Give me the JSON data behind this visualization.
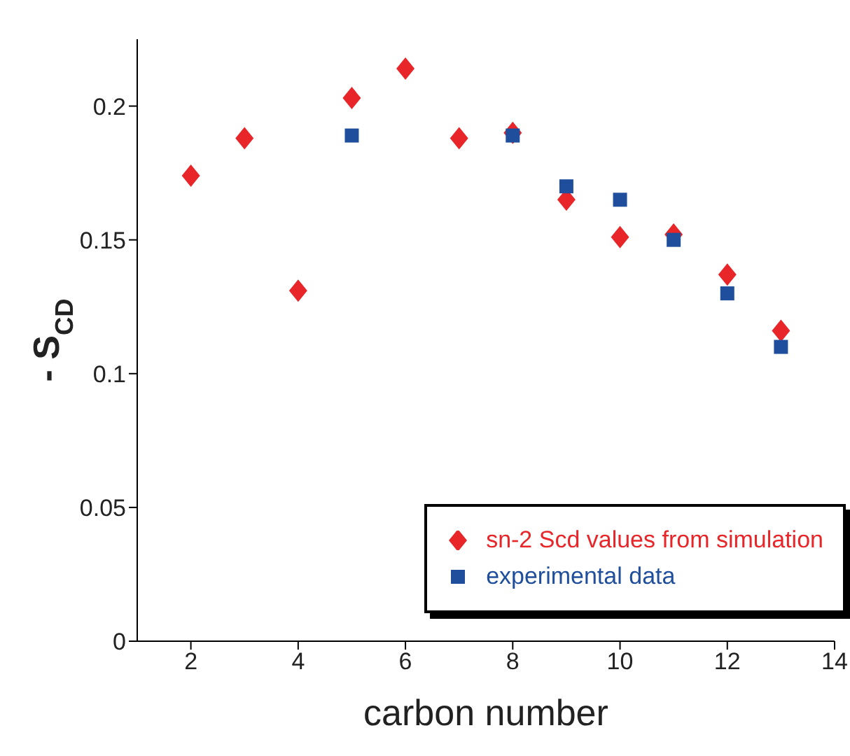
{
  "chart_data": {
    "type": "scatter",
    "xlabel": "carbon number",
    "ylabel": "- S$_{CD}$",
    "xlim": [
      1,
      14
    ],
    "xticks": [
      2,
      4,
      6,
      8,
      10,
      12,
      14
    ],
    "ylim": [
      0,
      0.225
    ],
    "yticks": [
      0,
      0.05,
      0.1,
      0.15,
      0.2
    ],
    "grid": false,
    "legend": "bottom right",
    "series": [
      {
        "name": "sn-2 Scd values from simulation",
        "color": "#e8262a",
        "marker": "diamond",
        "x": [
          2,
          3,
          4,
          5,
          6,
          7,
          8,
          9,
          10,
          11,
          12,
          13
        ],
        "values": [
          0.174,
          0.188,
          0.131,
          0.203,
          0.214,
          0.188,
          0.19,
          0.165,
          0.151,
          0.152,
          0.137,
          0.116
        ]
      },
      {
        "name": "experimental data",
        "color": "#1f4e9c",
        "marker": "square",
        "x": [
          5,
          8,
          9,
          10,
          11,
          12,
          13
        ],
        "values": [
          0.189,
          0.189,
          0.17,
          0.165,
          0.15,
          0.13,
          0.11
        ]
      }
    ]
  }
}
